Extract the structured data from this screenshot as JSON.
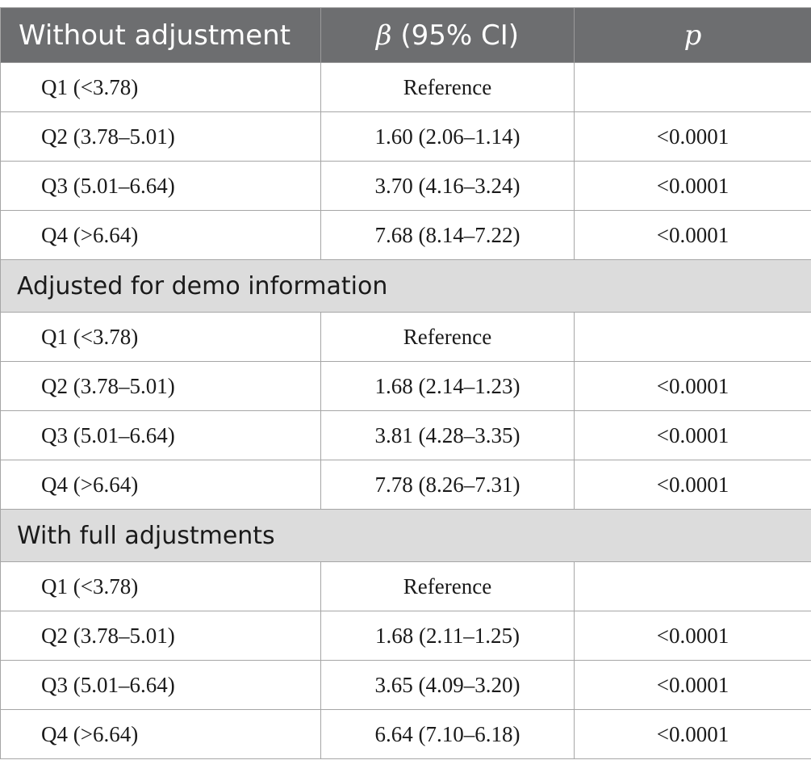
{
  "table": {
    "header": {
      "col1": "Without adjustment",
      "col2_symbol": "β",
      "col2_rest": " (95% CI)",
      "col3": "p"
    },
    "groups": [
      {
        "title": "",
        "rows": [
          {
            "label": "Q1 (<3.78)",
            "beta": "Reference",
            "p": ""
          },
          {
            "label": "Q2 (3.78–5.01)",
            "beta": "1.60 (2.06–1.14)",
            "p": "<0.0001"
          },
          {
            "label": "Q3 (5.01–6.64)",
            "beta": "3.70 (4.16–3.24)",
            "p": "<0.0001"
          },
          {
            "label": "Q4 (>6.64)",
            "beta": "7.68 (8.14–7.22)",
            "p": "<0.0001"
          }
        ]
      },
      {
        "title": "Adjusted for demo information",
        "rows": [
          {
            "label": "Q1 (<3.78)",
            "beta": "Reference",
            "p": ""
          },
          {
            "label": "Q2 (3.78–5.01)",
            "beta": "1.68 (2.14–1.23)",
            "p": "<0.0001"
          },
          {
            "label": "Q3 (5.01–6.64)",
            "beta": "3.81 (4.28–3.35)",
            "p": "<0.0001"
          },
          {
            "label": "Q4 (>6.64)",
            "beta": "7.78 (8.26–7.31)",
            "p": "<0.0001"
          }
        ]
      },
      {
        "title": "With full adjustments",
        "rows": [
          {
            "label": "Q1 (<3.78)",
            "beta": "Reference",
            "p": ""
          },
          {
            "label": "Q2 (3.78–5.01)",
            "beta": "1.68 (2.11–1.25)",
            "p": "<0.0001"
          },
          {
            "label": "Q3 (5.01–6.64)",
            "beta": "3.65 (4.09–3.20)",
            "p": "<0.0001"
          },
          {
            "label": "Q4 (>6.64)",
            "beta": "6.64 (7.10–6.18)",
            "p": "<0.0001"
          }
        ]
      }
    ]
  },
  "colors": {
    "header_bg": "#6d6e70",
    "section_bg": "#dcdcdc",
    "border": "#a6a6a6"
  }
}
